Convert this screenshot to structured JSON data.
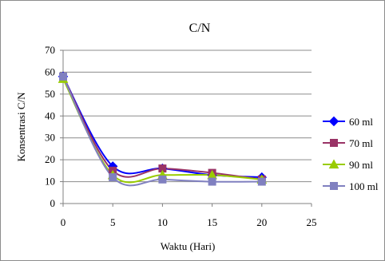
{
  "chart_data": {
    "type": "line",
    "title": "C/N",
    "xlabel": "Waktu (Hari)",
    "ylabel": "Konsentrasi C/N",
    "xlim": [
      0,
      25
    ],
    "ylim": [
      0,
      70
    ],
    "x_ticks": [
      "0",
      "5",
      "10",
      "15",
      "20",
      "25"
    ],
    "y_ticks": [
      "0",
      "10",
      "20",
      "30",
      "40",
      "50",
      "60",
      "70"
    ],
    "grid": "horizontal",
    "legend_position": "right",
    "x": [
      0,
      5,
      10,
      15,
      20
    ],
    "series": [
      {
        "name": "60 ml",
        "values": [
          58,
          17,
          16,
          13,
          12
        ],
        "color": "#0000ff",
        "marker": "diamond"
      },
      {
        "name": "70 ml",
        "values": [
          58,
          15,
          16,
          14,
          11
        ],
        "color": "#993366",
        "marker": "square"
      },
      {
        "name": "90 ml",
        "values": [
          57,
          13,
          13,
          13,
          11
        ],
        "color": "#99cc00",
        "marker": "triangle"
      },
      {
        "name": "100 ml",
        "values": [
          58,
          12,
          11,
          10,
          10
        ],
        "color": "#8080c0",
        "marker": "square"
      }
    ]
  }
}
